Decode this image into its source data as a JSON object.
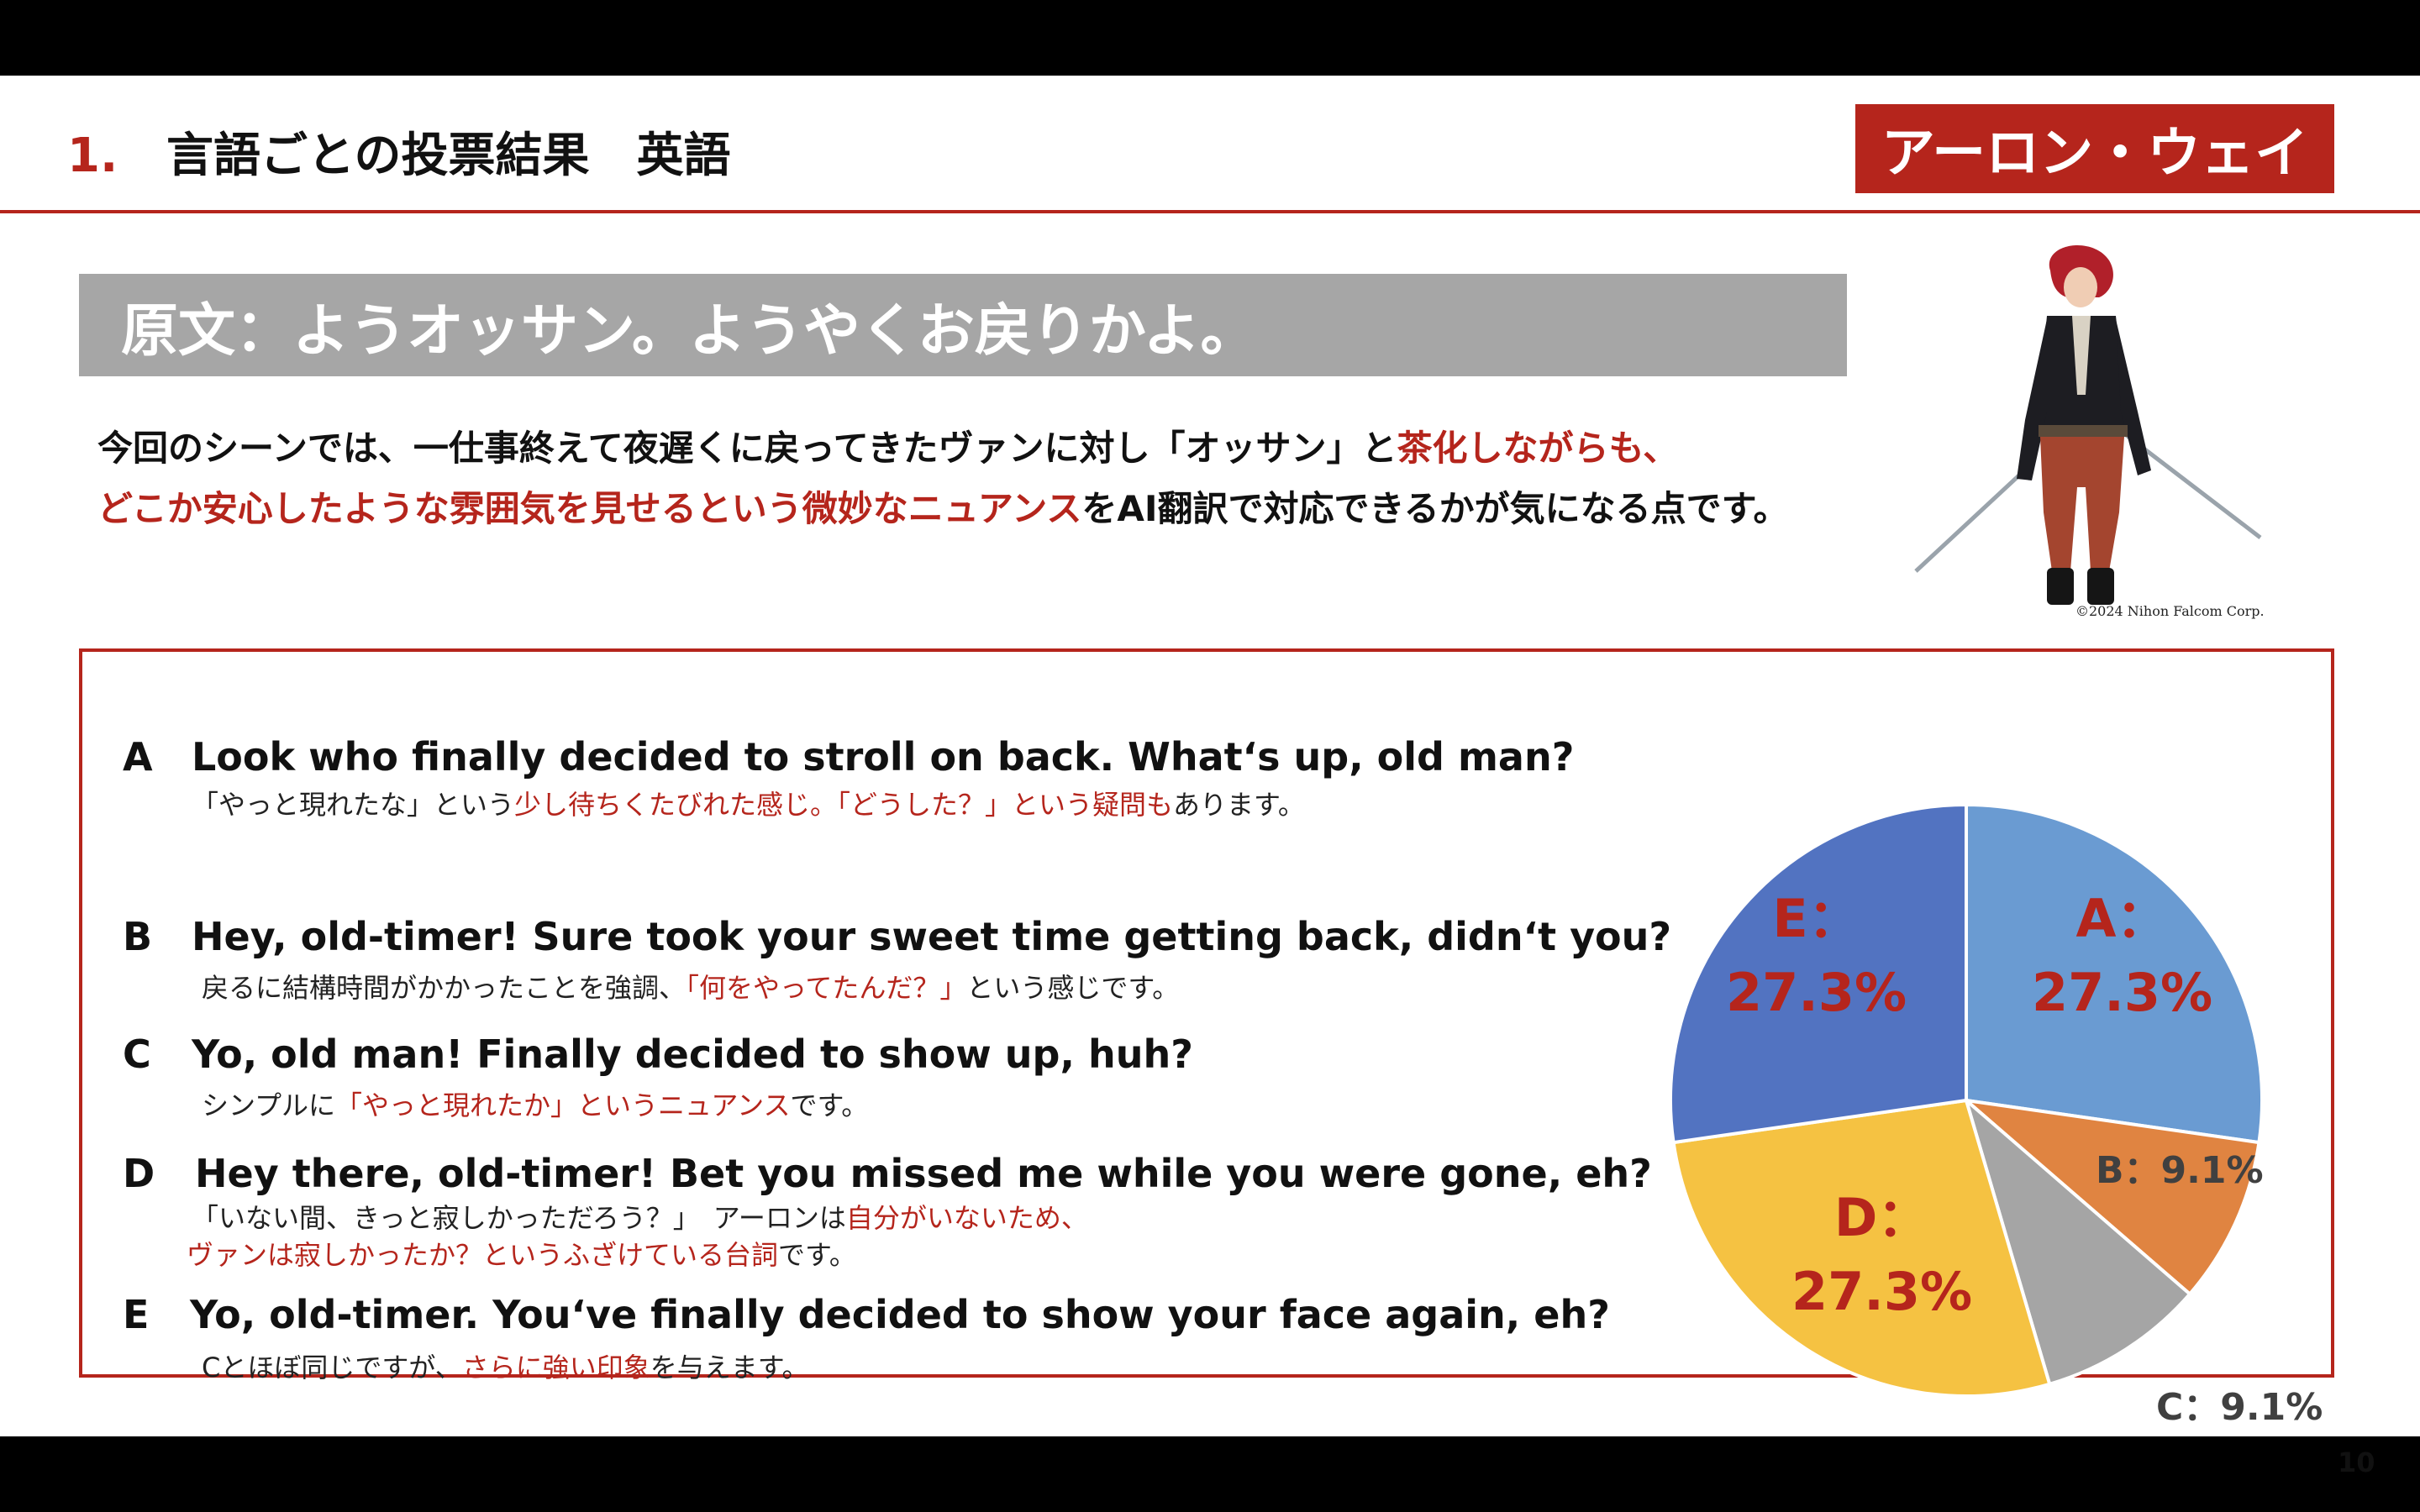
{
  "header": {
    "number": "1.",
    "title": "言語ごとの投票結果　英語",
    "character_name": "アーロン・ウェイ"
  },
  "original": {
    "text": "原文：ようオッサン。ようやくお戻りかよ。"
  },
  "description": {
    "line1_a": "今回のシーンでは、一仕事終えて夜遅くに戻ってきたヴァンに対し「オッサン」と",
    "line1_b": "茶化しながらも、",
    "line2_a": "どこか安心したような雰囲気を見せるという微妙なニュアンス",
    "line2_b": "をAI翻訳で対応できるかが気になる点です。"
  },
  "image": {
    "copyright": "©2024 Nihon Falcom Corp."
  },
  "options": [
    {
      "letter": "A",
      "english": "Look who finally decided to stroll on back. What‘s up, old man?",
      "jp_1": "「やっと現れたな」という",
      "jp_2": "少し待ちくたびれた感じ。「どうした？」という疑問も",
      "jp_3": "あります。"
    },
    {
      "letter": "B",
      "english": "Hey, old-timer! Sure took your sweet time getting back, didn‘t you?",
      "jp_1": "戻るに結構時間がかかったことを強調、",
      "jp_2": "「何をやってたんだ？」",
      "jp_3": "という感じです。"
    },
    {
      "letter": "C",
      "english": "Yo, old man! Finally decided to show up, huh?",
      "jp_1": "シンプルに",
      "jp_2": "「やっと現れたか」というニュアンス",
      "jp_3": "です。"
    },
    {
      "letter": "D",
      "english": "Hey there, old-timer! Bet you missed me while you were gone, eh?",
      "jp_1": "「いない間、きっと寂しかっただろう？」　アーロンは",
      "jp_2": "自分がいないため、",
      "jp_3": "ヴァンは寂しかったか？というふざけている台詞",
      "jp_4": "です。"
    },
    {
      "letter": "E",
      "english": "Yo, old-timer. You‘ve finally decided to show your face again, eh?",
      "jp_1": "Cとほぼ同じですが、",
      "jp_2": "さらに強い印象",
      "jp_3": "を与えます。"
    }
  ],
  "chart_data": {
    "type": "pie",
    "categories": [
      "A",
      "B",
      "C",
      "D",
      "E"
    ],
    "values": [
      27.3,
      9.1,
      9.1,
      27.3,
      27.3
    ],
    "labels": [
      "A：27.3%",
      "B：9.1%",
      "C：9.1%",
      "D：27.3%",
      "E：27.3%"
    ],
    "colors": [
      "#6a9bd2",
      "#e08441",
      "#a5a5a5",
      "#f5c242",
      "#5273c1"
    ]
  },
  "page_number": "10"
}
